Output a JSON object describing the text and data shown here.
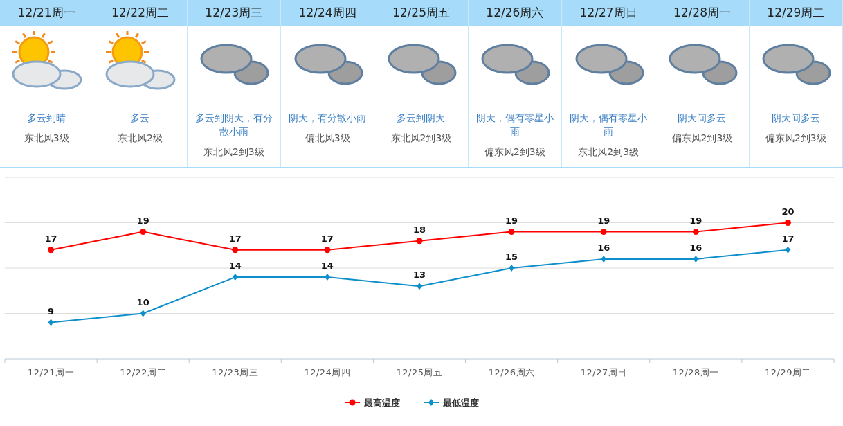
{
  "chart_data": [
    {
      "type": "other",
      "categories": [
        "12/21周一",
        "12/22周二",
        "12/23周三",
        "12/24周四",
        "12/25周五",
        "12/26周六",
        "12/27周日",
        "12/28周一",
        "12/29周二"
      ],
      "annotations": [
        "多云到晴",
        "东北风3级",
        "多云",
        "东北风2级",
        "多云到阴天，有分散小雨",
        "东北风2到3级",
        "阴天，有分散小雨",
        "偏北风3级",
        "多云到阴天",
        "东北风2到3级",
        "阴天，偶有零星小雨",
        "偏东风2到3级",
        "阴天，偶有零星小雨",
        "东北风2到3级",
        "阴天间多云",
        "偏东风2到3级",
        "阴天间多云",
        "偏东风2到3级"
      ]
    },
    {
      "type": "line",
      "categories": [
        "12/21周一",
        "12/22周二",
        "12/23周三",
        "12/24周四",
        "12/25周五",
        "12/26周六",
        "12/27周日",
        "12/28周一",
        "12/29周二"
      ],
      "series": [
        {
          "name": "最高温度",
          "color": "#ff0000",
          "marker": "circle",
          "values": [
            17,
            19,
            17,
            17,
            18,
            19,
            19,
            19,
            20
          ]
        },
        {
          "name": "最低温度",
          "color": "#0e8fcb",
          "marker": "diamond",
          "values": [
            9,
            10,
            14,
            14,
            13,
            15,
            16,
            16,
            17
          ]
        }
      ],
      "ylim": [
        5,
        25
      ],
      "yticks": [
        {
          "value": 5,
          "label": null
        },
        {
          "value": 10,
          "label": null
        },
        {
          "value": 15,
          "label": null
        },
        {
          "value": 20,
          "label": null
        },
        {
          "value": 25,
          "label": null
        }
      ],
      "tick_labels": "x",
      "grid": "y",
      "legend": "bottom",
      "data_labels": true
    }
  ]
}
